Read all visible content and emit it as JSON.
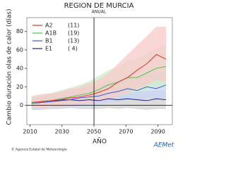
{
  "chart_data": {
    "type": "line",
    "title": "REGION DE MURCIA",
    "subtitle": "ANUAL",
    "y_label": "Cambio duración olas de calor (días)",
    "x_label": "AÑO",
    "x": [
      2011,
      2017,
      2023,
      2029,
      2035,
      2041,
      2047,
      2053,
      2059,
      2065,
      2071,
      2077,
      2083,
      2089,
      2095
    ],
    "series": [
      {
        "name": "E1",
        "legend_count": "( 4)",
        "color": "#1a237e",
        "band_color": "#d0d0d0",
        "values": [
          2,
          3,
          4,
          5,
          6,
          5,
          6,
          5,
          7,
          6,
          7,
          6,
          5,
          7,
          6
        ],
        "band_low": [
          -5,
          -5,
          -4,
          -4,
          -3,
          -4,
          -4,
          -4,
          -3,
          -4,
          -3,
          -4,
          -5,
          -4,
          -4
        ],
        "band_high": [
          8,
          10,
          12,
          13,
          14,
          14,
          15,
          15,
          16,
          16,
          16,
          16,
          15,
          16,
          16
        ]
      },
      {
        "name": "B1",
        "legend_count": "(13)",
        "color": "#3a5bd9",
        "band_color": "#c8d6f5",
        "values": [
          2,
          3,
          4,
          6,
          6,
          8,
          9,
          10,
          13,
          15,
          18,
          16,
          20,
          18,
          22
        ],
        "band_low": [
          -5,
          -4,
          -3,
          -2,
          -2,
          -1,
          0,
          1,
          3,
          4,
          6,
          6,
          8,
          7,
          9
        ],
        "band_high": [
          8,
          10,
          12,
          14,
          15,
          18,
          20,
          22,
          26,
          28,
          32,
          30,
          34,
          34,
          38
        ]
      },
      {
        "name": "A1B",
        "legend_count": "(19)",
        "color": "#4cc24c",
        "band_color": "#cdeec8",
        "values": [
          2,
          4,
          5,
          7,
          9,
          11,
          13,
          17,
          22,
          25,
          30,
          30,
          35,
          40,
          42
        ],
        "band_low": [
          -4,
          -3,
          -2,
          -1,
          0,
          2,
          3,
          5,
          8,
          10,
          13,
          14,
          16,
          20,
          20
        ],
        "band_high": [
          9,
          11,
          13,
          16,
          19,
          22,
          26,
          32,
          38,
          42,
          48,
          50,
          56,
          62,
          65
        ]
      },
      {
        "name": "A2",
        "legend_count": "(11)",
        "color": "#e53030",
        "band_color": "#f7c9c9",
        "values": [
          3,
          4,
          5,
          6,
          8,
          9,
          11,
          14,
          18,
          25,
          30,
          38,
          45,
          55,
          50
        ],
        "band_low": [
          -3,
          -3,
          -2,
          -1,
          0,
          1,
          2,
          4,
          6,
          10,
          14,
          18,
          22,
          28,
          25
        ],
        "band_high": [
          10,
          12,
          13,
          15,
          18,
          20,
          24,
          28,
          35,
          45,
          55,
          65,
          75,
          85,
          85
        ]
      }
    ],
    "legend_order": [
      3,
      2,
      1,
      0
    ],
    "xlim": [
      2008,
      2099
    ],
    "xticks": [
      2010,
      2030,
      2050,
      2070,
      2090
    ],
    "ylim": [
      -21,
      95
    ],
    "yticks": [
      0,
      20,
      40,
      60,
      80
    ],
    "vline": 2050,
    "hline": 0,
    "source": "© Agencia Estatal de Meteorología",
    "logo": "AEMet"
  }
}
